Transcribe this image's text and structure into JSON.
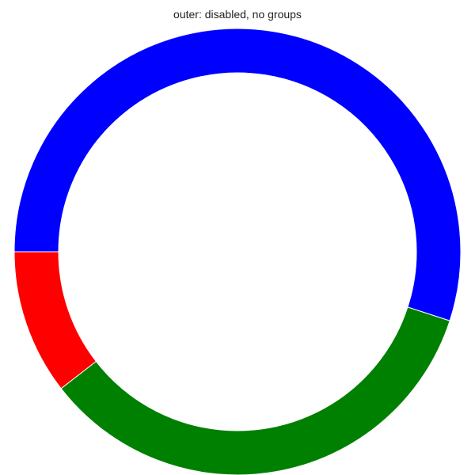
{
  "chart_data": {
    "type": "pie",
    "title": "outer: disabled, no groups",
    "style": "donut",
    "start": "left, counter-clockwise",
    "slices": [
      {
        "value": 10.5,
        "color": "#ff0000"
      },
      {
        "value": 34.5,
        "color": "#008000"
      },
      {
        "value": 55.0,
        "color": "#0000ff"
      }
    ]
  }
}
